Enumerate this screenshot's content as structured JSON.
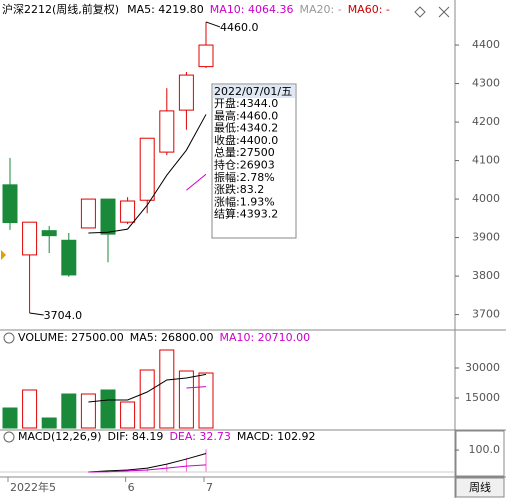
{
  "chart_data": [
    {
      "type": "candlestick",
      "title": "沪深2212(周线,前复权)",
      "indicators": [
        {
          "text": "MA5: 4219.80",
          "color": "#000000"
        },
        {
          "text": "MA10: 4064.36",
          "color": "#cc00cc"
        },
        {
          "text": "MA20: -",
          "color": "#999999"
        },
        {
          "text": "MA60: -",
          "color": "#cc0000"
        }
      ],
      "categories": [
        "2022年5",
        null,
        null,
        null,
        null,
        null,
        "6",
        null,
        null,
        null,
        "7"
      ],
      "open": [
        4037,
        3855,
        3918,
        3893,
        3925,
        4000,
        3940,
        3997,
        4122,
        4231,
        4344
      ],
      "high": [
        4107,
        3940,
        3930,
        3912,
        4000,
        4000,
        4005,
        4158,
        4288,
        4330,
        4460
      ],
      "low": [
        3920,
        3704,
        3860,
        3798,
        3925,
        3836,
        3935,
        3963,
        4114,
        4180,
        4340
      ],
      "close": [
        3939,
        3940,
        3905,
        3803,
        4000,
        3909,
        3995,
        4158,
        4229,
        4322,
        4400
      ],
      "up_color": "#e00000",
      "down_color": "#1a8a3a",
      "series": [
        {
          "name": "MA5",
          "color": "#000000",
          "values": [
            null,
            null,
            null,
            null,
            3912,
            3914,
            3922,
            3984,
            4062,
            4127,
            4219.8
          ]
        },
        {
          "name": "MA10",
          "color": "#cc00cc",
          "values": [
            null,
            null,
            null,
            null,
            null,
            null,
            null,
            null,
            null,
            4023,
            4064.36
          ]
        }
      ],
      "annotations": [
        "4460.0",
        "3704.0"
      ],
      "ylim": [
        3660,
        4517
      ],
      "yticks": [
        3700,
        3800,
        3900,
        4000,
        4100,
        4200,
        4300,
        4400
      ],
      "tooltip": {
        "date": "2022/07/01/五",
        "rows": [
          "开盘:4344.0",
          "最高:4460.0",
          "最低:4340.2",
          "收盘:4400.0",
          "总量:27500",
          "持仓:26903",
          "振幅:2.78%",
          "涨跌:83.2",
          "涨幅:1.93%",
          "结算:4393.2"
        ]
      }
    },
    {
      "type": "volume",
      "indicators": [
        {
          "text": "VOLUME: 27500.00",
          "color": "#000000"
        },
        {
          "text": "MA5: 26800.00",
          "color": "#000000"
        },
        {
          "text": "MA10: 20710.00",
          "color": "#cc00cc"
        }
      ],
      "values": [
        10000,
        19000,
        5000,
        17000,
        17000,
        19000,
        13000,
        29000,
        39000,
        28500,
        27500
      ],
      "series": [
        {
          "name": "MA5",
          "color": "#000000",
          "values": [
            null,
            null,
            null,
            null,
            13000,
            14000,
            14000,
            18000,
            24000,
            25000,
            26800
          ]
        },
        {
          "name": "MA10",
          "color": "#cc00cc",
          "values": [
            null,
            null,
            null,
            null,
            null,
            null,
            null,
            null,
            null,
            20000,
            20710
          ]
        }
      ],
      "ylim": [
        0,
        44000
      ],
      "yticks": [
        15000,
        30000
      ]
    },
    {
      "type": "macd",
      "indicators": [
        {
          "text": "MACD(12,26,9)",
          "color": "#000000"
        },
        {
          "text": "DIF: 84.19",
          "color": "#000000"
        },
        {
          "text": "DEA: 32.73",
          "color": "#cc00cc"
        },
        {
          "text": "MACD: 102.92",
          "color": "#000000"
        }
      ],
      "values": [
        null,
        null,
        null,
        null,
        0,
        8,
        8,
        18,
        36,
        64,
        102.92
      ],
      "color": "#ff66cc",
      "series": [
        {
          "name": "DIF",
          "color": "#000000",
          "values": [
            null,
            null,
            null,
            null,
            0,
            5,
            9,
            18,
            36,
            59,
            84.19
          ]
        },
        {
          "name": "DEA",
          "color": "#cc00cc",
          "values": [
            null,
            null,
            null,
            null,
            0,
            1,
            5,
            9,
            18,
            27,
            32.73
          ]
        }
      ],
      "ylim": [
        -9,
        114
      ],
      "yticks": [
        {
          "value": 100,
          "label": "100.0"
        }
      ]
    }
  ],
  "footer": {
    "period": "周线"
  }
}
